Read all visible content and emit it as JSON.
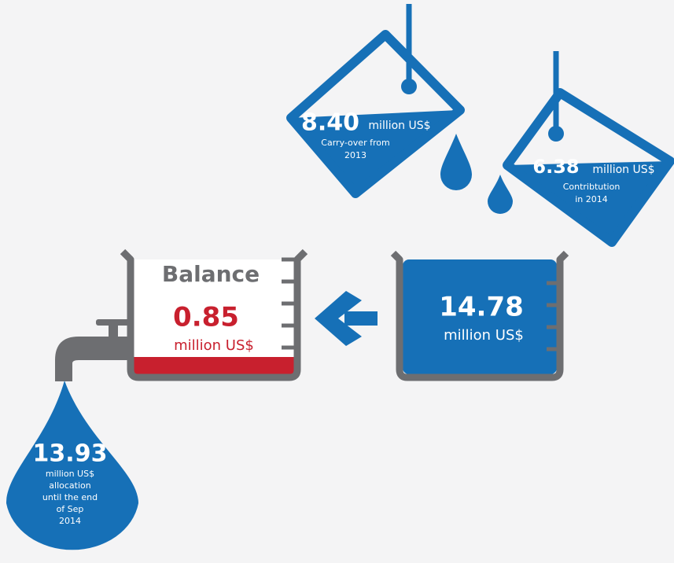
{
  "carry_over": {
    "amount": "8.40",
    "unit": "million US$",
    "label_lines": [
      "Carry-over from",
      "2013"
    ]
  },
  "contribution": {
    "amount": "6.38",
    "unit": "million US$",
    "label_lines": [
      "Contribtution",
      "in 2014"
    ]
  },
  "total": {
    "amount": "14.78",
    "unit": "million US$"
  },
  "balance": {
    "title": "Balance",
    "amount": "0.85",
    "unit": "million US$"
  },
  "allocation": {
    "amount": "13.93",
    "lines": [
      "million US$",
      "allocation",
      "until the end",
      "of Sep",
      "2014"
    ]
  }
}
